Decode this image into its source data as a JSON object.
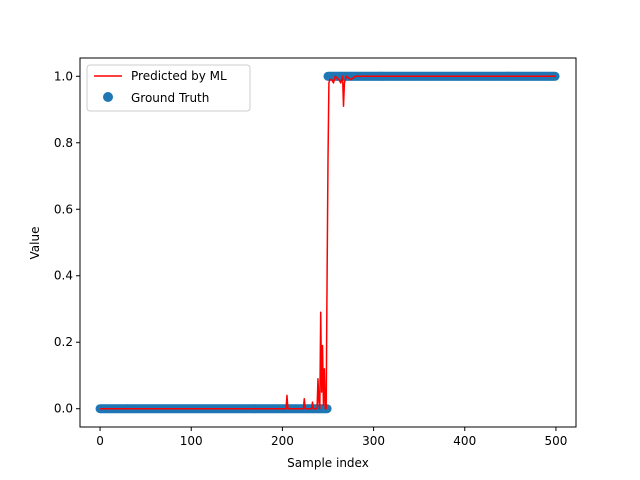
{
  "chart_data": {
    "type": "scatter",
    "title": "",
    "xlabel": "Sample index",
    "ylabel": "Value",
    "xlim": [
      -22,
      522
    ],
    "ylim": [
      -0.055,
      1.055
    ],
    "xticks": [
      0,
      100,
      200,
      300,
      400,
      500
    ],
    "yticks": [
      0.0,
      0.2,
      0.4,
      0.6,
      0.8,
      1.0
    ],
    "ytick_labels": [
      "0.0",
      "0.2",
      "0.4",
      "0.6",
      "0.8",
      "1.0"
    ],
    "grid": false,
    "legend": "upper left",
    "series": [
      {
        "name": "Predicted by ML",
        "kind": "line",
        "color": "#ff0000",
        "points": [
          [
            0,
            0.0
          ],
          [
            204,
            0.0
          ],
          [
            205,
            0.04
          ],
          [
            206,
            0.0
          ],
          [
            223,
            0.0
          ],
          [
            224,
            0.03
          ],
          [
            225,
            0.0
          ],
          [
            232,
            0.0
          ],
          [
            233,
            0.02
          ],
          [
            234,
            0.0
          ],
          [
            238,
            0.0
          ],
          [
            239,
            0.09
          ],
          [
            240,
            0.02
          ],
          [
            241,
            0.0
          ],
          [
            242,
            0.29
          ],
          [
            243,
            0.05
          ],
          [
            244,
            0.19
          ],
          [
            245,
            0.01
          ],
          [
            246,
            0.12
          ],
          [
            247,
            0.0
          ],
          [
            248,
            0.0
          ],
          [
            249,
            0.4
          ],
          [
            250,
            0.75
          ],
          [
            251,
            0.98
          ],
          [
            252,
            0.99
          ],
          [
            254,
            0.99
          ],
          [
            256,
            0.98
          ],
          [
            258,
            1.0
          ],
          [
            262,
            0.99
          ],
          [
            264,
            0.98
          ],
          [
            266,
            1.0
          ],
          [
            267,
            0.91
          ],
          [
            268,
            0.98
          ],
          [
            270,
            1.0
          ],
          [
            275,
            0.99
          ],
          [
            280,
            1.0
          ],
          [
            500,
            1.0
          ]
        ]
      },
      {
        "name": "Ground Truth",
        "kind": "scatter",
        "color": "#1f77b4",
        "segments": [
          {
            "x_start": 0,
            "x_end": 249,
            "value": 0
          },
          {
            "x_start": 250,
            "x_end": 499,
            "value": 1
          }
        ]
      }
    ]
  }
}
